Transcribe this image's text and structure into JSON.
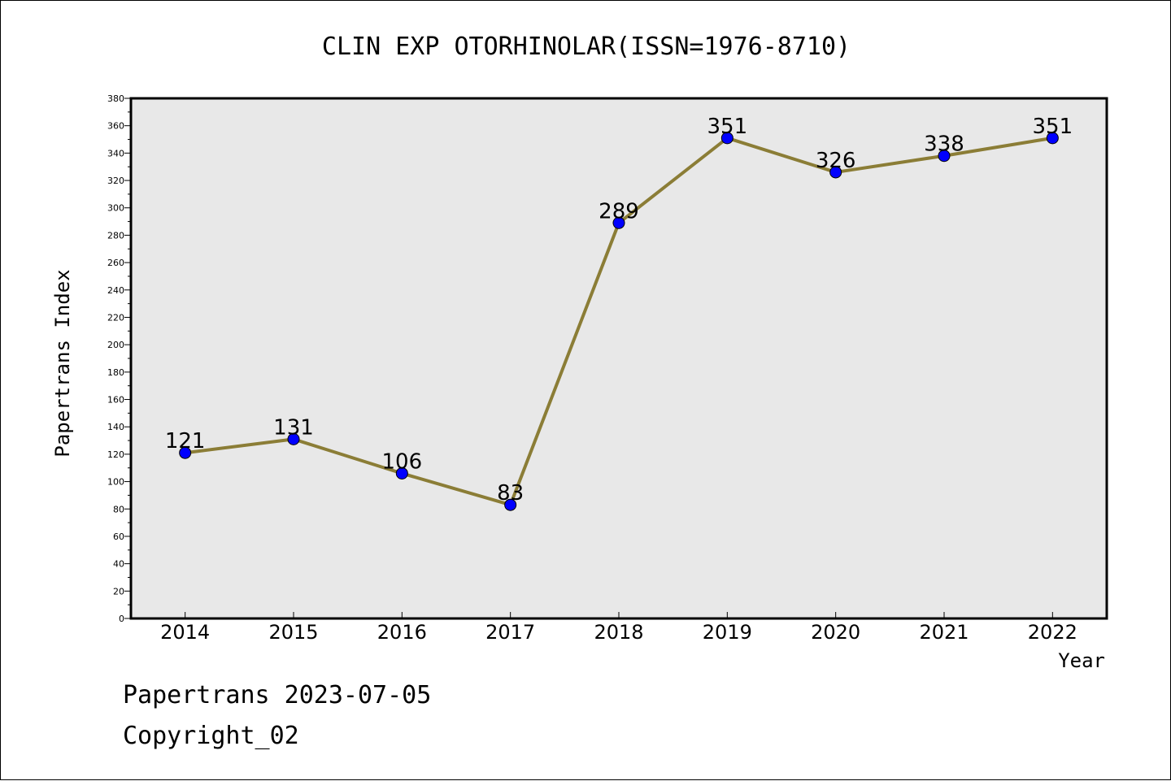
{
  "chart_data": {
    "type": "line",
    "title": "CLIN EXP OTORHINOLAR(ISSN=1976-8710)",
    "xlabel": "Year",
    "ylabel": "Papertrans Index",
    "categories": [
      "2014",
      "2015",
      "2016",
      "2017",
      "2018",
      "2019",
      "2020",
      "2021",
      "2022"
    ],
    "series": [
      {
        "values": [
          121,
          131,
          106,
          83,
          289,
          351,
          326,
          338,
          351
        ]
      }
    ],
    "data_labels": [
      "121",
      "131",
      "106",
      "83",
      "289",
      "351",
      "326",
      "338",
      "351"
    ],
    "ylim": [
      0,
      380
    ],
    "yticks": [
      0,
      20,
      40,
      60,
      80,
      100,
      120,
      140,
      160,
      180,
      200,
      220,
      240,
      260,
      280,
      300,
      320,
      340,
      360,
      380
    ],
    "grid": false,
    "colors": {
      "plot_background": "#e8e8e8",
      "line": "#8b7d36",
      "marker": "#0000ff"
    }
  },
  "footer": {
    "line1": "Papertrans 2023-07-05",
    "line2": "Copyright_02"
  }
}
